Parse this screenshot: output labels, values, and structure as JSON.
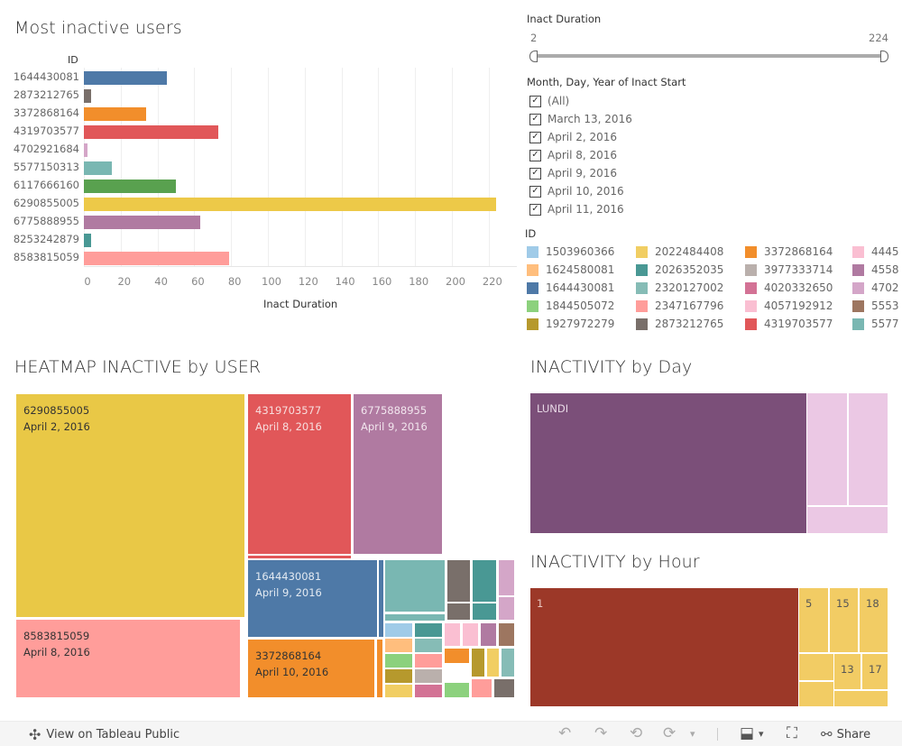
{
  "bar_section": {
    "title": "Most inactive users",
    "id_header": "ID",
    "x_axis_title": "Inact Duration"
  },
  "chart_data": {
    "type": "bar",
    "orientation": "horizontal",
    "title": "Most inactive users",
    "xlabel": "Inact Duration",
    "ylabel": "ID",
    "xlim": [
      0,
      235
    ],
    "x_ticks": [
      "0",
      "20",
      "40",
      "60",
      "80",
      "100",
      "120",
      "140",
      "160",
      "180",
      "200",
      "220"
    ],
    "categories": [
      "1644430081",
      "2873212765",
      "3372868164",
      "4319703577",
      "4702921684",
      "5577150313",
      "6117666160",
      "6290855005",
      "6775888955",
      "8253242879",
      "8583815059"
    ],
    "values": [
      45,
      4,
      34,
      73,
      2,
      15,
      50,
      224,
      63,
      4,
      79
    ],
    "colors": [
      "#4e79a7",
      "#796f6a",
      "#f28e2b",
      "#e15759",
      "#d4a6c8",
      "#79b7b2",
      "#59a14f",
      "#edc948",
      "#b07aa1",
      "#499894",
      "#ff9d9a"
    ],
    "grid": true
  },
  "filters": {
    "duration": {
      "title": "Inact Duration",
      "min_label": "2",
      "max_label": "224",
      "min": 2,
      "max": 224
    },
    "date": {
      "title": "Month, Day, Year of Inact Start",
      "items": [
        {
          "label": "(All)",
          "checked": true
        },
        {
          "label": "March 13, 2016",
          "checked": true
        },
        {
          "label": "April 2, 2016",
          "checked": true
        },
        {
          "label": "April 8, 2016",
          "checked": true
        },
        {
          "label": "April 9, 2016",
          "checked": true
        },
        {
          "label": "April 10, 2016",
          "checked": true
        },
        {
          "label": "April 11, 2016",
          "checked": true
        }
      ],
      "check_glyph": "✓"
    }
  },
  "legend": {
    "title": "ID",
    "items": [
      {
        "label": "1503960366",
        "color": "#a0cbe8"
      },
      {
        "label": "1624580081",
        "color": "#ffbe7d"
      },
      {
        "label": "1644430081",
        "color": "#4e79a7"
      },
      {
        "label": "1844505072",
        "color": "#8cd17d"
      },
      {
        "label": "1927972279",
        "color": "#b6992d"
      },
      {
        "label": "2022484408",
        "color": "#f1ce63"
      },
      {
        "label": "2026352035",
        "color": "#499894"
      },
      {
        "label": "2320127002",
        "color": "#86bcb6"
      },
      {
        "label": "2347167796",
        "color": "#ff9d9a"
      },
      {
        "label": "2873212765",
        "color": "#796f6a"
      },
      {
        "label": "3372868164",
        "color": "#f28e2b"
      },
      {
        "label": "3977333714",
        "color": "#bab0ac"
      },
      {
        "label": "4020332650",
        "color": "#d37295"
      },
      {
        "label": "4057192912",
        "color": "#fabfd2"
      },
      {
        "label": "4319703577",
        "color": "#e15759"
      },
      {
        "label": "4445",
        "color": "#fabfd2"
      },
      {
        "label": "4558",
        "color": "#b07aa1"
      },
      {
        "label": "4702",
        "color": "#d4a6c8"
      },
      {
        "label": "5553",
        "color": "#9d7660"
      },
      {
        "label": "5577",
        "color": "#79b7b2"
      }
    ]
  },
  "heatmap": {
    "title": "HEATMAP INACTIVE by USER",
    "labeled_tiles": [
      {
        "id": "6290855005",
        "date": "April 2, 2016",
        "color": "#e9c846",
        "text_color": "#333"
      },
      {
        "id": "8583815059",
        "date": "April 8, 2016",
        "color": "#ff9d9a",
        "text_color": "#333"
      },
      {
        "id": "4319703577",
        "date": "April 8, 2016",
        "color": "#e15759",
        "text_color": "#f7dede"
      },
      {
        "id": "6775888955",
        "date": "April 9, 2016",
        "color": "#b07aa1",
        "text_color": "#f2e6ee"
      },
      {
        "id": "1644430081",
        "date": "April 9, 2016",
        "color": "#4e79a7",
        "text_color": "#e3eaf2"
      },
      {
        "id": "3372868164",
        "date": "April 10, 2016",
        "color": "#f28e2b",
        "text_color": "#333"
      }
    ]
  },
  "day_treemap": {
    "title": "INACTIVITY by Day",
    "main_label": "LUNDI",
    "main_color": "#7b4f79",
    "other_color": "#ebc8e4"
  },
  "hour_treemap": {
    "title": "INACTIVITY by Hour",
    "tiles": [
      {
        "label": "1",
        "color": "#9c3828",
        "text_color": "#e9c7c0"
      },
      {
        "label": "5",
        "color": "#f2cc64",
        "text_color": "#555"
      },
      {
        "label": "15",
        "color": "#f2cc64",
        "text_color": "#555"
      },
      {
        "label": "18",
        "color": "#f2cc64",
        "text_color": "#555"
      },
      {
        "label": "",
        "color": "#f2cc64",
        "text_color": "#555"
      },
      {
        "label": "13",
        "color": "#f2cc64",
        "text_color": "#555"
      },
      {
        "label": "17",
        "color": "#f2cc64",
        "text_color": "#555"
      },
      {
        "label": "",
        "color": "#f2cc64",
        "text_color": "#555"
      },
      {
        "label": "",
        "color": "#f2cc64",
        "text_color": "#555"
      }
    ]
  },
  "footer": {
    "view_label": "View on Tableau Public",
    "share_label": "Share",
    "icons": {
      "tableau": "✣",
      "undo": "↶",
      "redo": "↷",
      "revert": "⟲",
      "refresh": "⟳",
      "dropdown": "▾",
      "download": "⬓",
      "fullscreen": "⛶",
      "share": "⚯"
    }
  }
}
